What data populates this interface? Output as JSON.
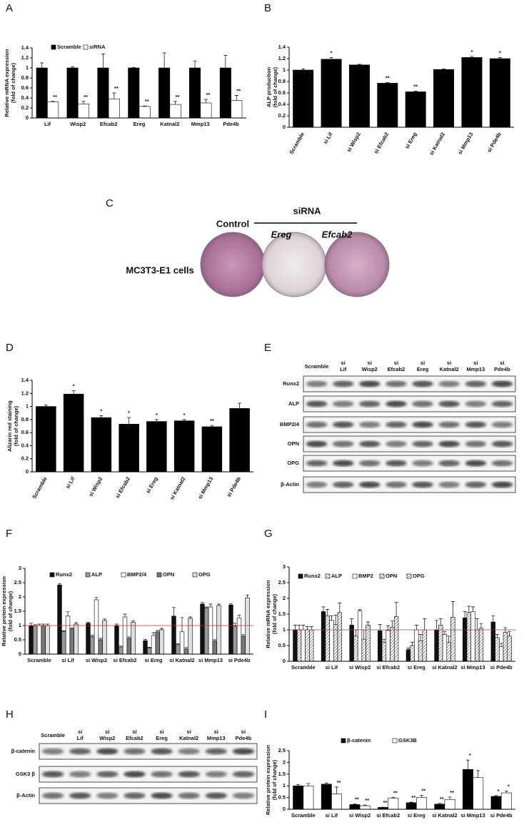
{
  "panel_letters": [
    "A",
    "B",
    "C",
    "D",
    "E",
    "F",
    "G",
    "H",
    "I"
  ],
  "panel_c": {
    "control": "Control",
    "sirna": "siRNA",
    "treatments": [
      "Ereg",
      "Efcab2"
    ],
    "cells": "MC3T3-E1 cells"
  },
  "panel_e": {
    "lanes": [
      [
        "Scramble"
      ],
      [
        "si",
        "Lif"
      ],
      [
        "si",
        "Wisp2"
      ],
      [
        "si",
        "Efcab2"
      ],
      [
        "si",
        "Ereg"
      ],
      [
        "si",
        "Katnal2"
      ],
      [
        "si",
        "Mmp13"
      ],
      [
        "si",
        "Pde4b"
      ]
    ],
    "rows": [
      "Runx2",
      "ALP",
      "BMP2/4",
      "OPN",
      "OPG",
      "β-Actin"
    ]
  },
  "panel_h": {
    "lanes": [
      [
        "Scramble"
      ],
      [
        "si",
        "Lif"
      ],
      [
        "si",
        "Wisp2"
      ],
      [
        "si",
        "Efcab2"
      ],
      [
        "si",
        "Ereg"
      ],
      [
        "si",
        "Katnal2"
      ],
      [
        "si",
        "Mmp13"
      ],
      [
        "si",
        "Pde4b"
      ]
    ],
    "rows": [
      "β-catenin",
      "GSK3 β",
      "β-Actin"
    ]
  },
  "chart_data": [
    {
      "type": "bar",
      "ylabel": [
        "Relative mRNA expression",
        "(fold of change)"
      ],
      "categories": [
        "Lif",
        "Wisp2",
        "Efcab2",
        "Ereg",
        "Katnal2",
        "Mmp13",
        "Pde4b"
      ],
      "series": [
        {
          "name": "Scramble",
          "color": "#000000",
          "values": [
            1,
            1,
            1,
            1,
            1,
            1,
            1
          ],
          "errors": [
            0.1,
            0.02,
            0.28,
            0.01,
            0.3,
            0.14,
            0.25
          ]
        },
        {
          "name": "siRNA",
          "color": "#ffffff",
          "values": [
            0.32,
            0.28,
            0.38,
            0.23,
            0.27,
            0.3,
            0.35
          ],
          "errors": [
            0.01,
            0.05,
            0.12,
            0.01,
            0.06,
            0.07,
            0.1
          ],
          "stars": [
            "**",
            "**",
            "**",
            "**",
            "**",
            "**",
            "**"
          ]
        }
      ],
      "ylim": [
        0,
        1.4
      ],
      "yticks": [
        0,
        0.2,
        0.4,
        0.6,
        0.8,
        1,
        1.2,
        1.4
      ],
      "legend": "top-left"
    },
    {
      "type": "bar",
      "ylabel": [
        "ALP production",
        "(fold of change)"
      ],
      "categories": [
        "Scramble",
        "si Lif",
        "si Wisp2",
        "si Efcab2",
        "si Ereg",
        "si Katnal2",
        "si Mmp13",
        "si Pde4b"
      ],
      "color": "#000000",
      "values": [
        1,
        1.19,
        1.09,
        0.77,
        0.62,
        1.01,
        1.22,
        1.2
      ],
      "errors": [
        0.02,
        0.03,
        0.01,
        0.01,
        0.01,
        0.01,
        0.02,
        0.02
      ],
      "stars": [
        null,
        "*",
        null,
        "**",
        "**",
        null,
        "*",
        "*"
      ],
      "ylim": [
        0,
        1.4
      ],
      "yticks": [
        0,
        0.2,
        0.4,
        0.6,
        0.8,
        1,
        1.2,
        1.4
      ]
    },
    {
      "type": "bar",
      "ylabel": [
        "Alizarin red staining",
        "(fold of change)"
      ],
      "categories": [
        "Scramble",
        "si Lif",
        "si Wisp2",
        "si Efcab2",
        "si Ereg",
        "si Katnal2",
        "si Mmp13",
        "si Pde4b"
      ],
      "color": "#000000",
      "values": [
        1,
        1.19,
        0.83,
        0.73,
        0.77,
        0.78,
        0.69,
        0.97
      ],
      "errors": [
        0.02,
        0.05,
        0.03,
        0.1,
        0.03,
        0.02,
        0.02,
        0.08
      ],
      "stars": [
        null,
        "*",
        "*",
        "*",
        "*",
        "*",
        "**",
        null
      ],
      "ylim": [
        0,
        1.4
      ],
      "yticks": [
        0,
        0.2,
        0.4,
        0.6,
        0.8,
        1,
        1.2,
        1.4
      ]
    },
    {
      "type": "bar",
      "ylabel": [
        "Relative protein expression",
        "(fold of change)"
      ],
      "categories": [
        "Scramble",
        "si Lif",
        "si Wisp2",
        "si Efcab2",
        "si Ereg",
        "si Katnal2",
        "si Mmp13",
        "si Pde4b"
      ],
      "series": [
        {
          "name": "Runx2",
          "color": "#111111",
          "values": [
            1,
            2.42,
            1.08,
            1,
            0.47,
            1.33,
            1.75,
            1.72
          ],
          "errors": [
            0.08,
            0.05,
            0.03,
            0.05,
            0.04,
            0.3,
            0.05,
            0.05
          ]
        },
        {
          "name": "ALP",
          "color": "#999999",
          "values": [
            1,
            0.8,
            0.62,
            0.25,
            0.22,
            0.33,
            1.62,
            0.98
          ],
          "errors": [
            0.03,
            0.02,
            0.05,
            0.03,
            0.02,
            0.03,
            0.03,
            0.1
          ]
        },
        {
          "name": "BMP2/4",
          "color": "#ffffff",
          "values": [
            1,
            1.33,
            1.9,
            1.3,
            0.65,
            0.78,
            1.65,
            1.27
          ],
          "errors": [
            0.05,
            0.15,
            0.08,
            0.1,
            0.1,
            0.5,
            0.1,
            0.1
          ]
        },
        {
          "name": "OPN",
          "color": "#777777",
          "values": [
            1,
            0.88,
            0.5,
            0.55,
            0.78,
            0.18,
            0.45,
            0.63
          ],
          "errors": [
            0.05,
            0.03,
            0.05,
            0.05,
            0.05,
            0.05,
            0.05,
            0.05
          ]
        },
        {
          "name": "OPG",
          "color": "#dddddd",
          "values": [
            1,
            1.05,
            1.18,
            1.12,
            0.85,
            1.25,
            1.7,
            1.97
          ],
          "errors": [
            0.05,
            0.05,
            0.05,
            0.05,
            0.05,
            0.05,
            0.05,
            0.1
          ]
        }
      ],
      "ylim": [
        0,
        3
      ],
      "yticks": [
        0,
        0.5,
        1,
        1.5,
        2,
        2.5,
        3
      ],
      "reference_line": 1,
      "reference_color": "#e02020",
      "legend": "top-left"
    },
    {
      "type": "bar",
      "ylabel": [
        "Relative mRNA expression",
        "(fold of change)"
      ],
      "categories": [
        "Scramble",
        "si Lif",
        "si Wisp2",
        "si Efcab2",
        "si Ereg",
        "si Katnal2",
        "si Mmp13",
        "si Pde4b"
      ],
      "series": [
        {
          "name": "Runx2",
          "color": "#111111",
          "values": [
            1,
            1.58,
            1.15,
            0.97,
            0.37,
            1,
            1.38,
            1.25
          ],
          "errors": [
            0.15,
            0.15,
            0.2,
            0.2,
            0.05,
            0.3,
            0.2,
            0.2
          ]
        },
        {
          "name": "ALP",
          "color": "#bbbbbb",
          "hatch": true,
          "values": [
            1,
            1.45,
            0.8,
            0.6,
            0.5,
            1.15,
            1.55,
            0.75
          ],
          "errors": [
            0.15,
            0.2,
            0.2,
            0.1,
            0.1,
            0.2,
            0.2,
            0.1
          ]
        },
        {
          "name": "BMP2",
          "color": "#ffffff",
          "values": [
            1,
            1.3,
            1.6,
            0.98,
            1,
            0.85,
            1.58,
            0.47
          ],
          "errors": [
            0.15,
            0.15,
            0.05,
            0.15,
            0.15,
            0.1,
            0.15,
            0.1
          ]
        },
        {
          "name": "OPN",
          "color": "#ffffff",
          "hatch": true,
          "values": [
            1,
            1.17,
            0.7,
            1.08,
            0.65,
            0.6,
            1,
            0.92
          ],
          "errors": [
            0.1,
            0.3,
            0.3,
            0.2,
            0.2,
            0.2,
            0.35,
            0.15
          ]
        },
        {
          "name": "OPG",
          "color": "#e0e0e0",
          "hatch": true,
          "values": [
            1,
            1.55,
            1.15,
            1.42,
            1,
            1.4,
            1.05,
            0.8
          ],
          "errors": [
            0.1,
            0.3,
            0.1,
            0.45,
            0.35,
            0.5,
            0.15,
            0.15
          ]
        }
      ],
      "ylim": [
        0,
        3
      ],
      "yticks": [
        0,
        0.5,
        1,
        1.5,
        2,
        2.5,
        3
      ],
      "reference_line": 1,
      "reference_color": "#e02020",
      "legend": "top-left"
    },
    {
      "type": "bar",
      "ylabel": [
        "Relative protein expression",
        "(fold of change)"
      ],
      "categories": [
        "Scramble",
        "si Lif",
        "si Wisp2",
        "si Efcab2",
        "si Ereg",
        "si Katnal2",
        "si Mmp13",
        "si Pde4b"
      ],
      "series": [
        {
          "name": "β-catenin",
          "color": "#000000",
          "values": [
            1,
            1.07,
            0.2,
            0.08,
            0.28,
            0.22,
            1.7,
            0.55
          ],
          "errors": [
            0.06,
            0.05,
            0.03,
            0.01,
            0.02,
            0.03,
            0.4,
            0.03
          ],
          "stars": [
            null,
            null,
            "**",
            "**",
            "**",
            "**",
            "*",
            "*"
          ]
        },
        {
          "name": "GSK3B",
          "color": "#ffffff",
          "values": [
            1,
            0.65,
            0.15,
            0.48,
            0.5,
            0.42,
            1.35,
            0.7
          ],
          "errors": [
            0.1,
            0.3,
            0.03,
            0.03,
            0.1,
            0.1,
            0.3,
            0.08
          ],
          "stars": [
            null,
            "**",
            "**",
            "**",
            "**",
            "**",
            null,
            "*"
          ]
        }
      ],
      "ylim": [
        0,
        2.5
      ],
      "yticks": [
        0,
        0.5,
        1,
        1.5,
        2,
        2.5
      ],
      "legend": "top-left"
    }
  ]
}
